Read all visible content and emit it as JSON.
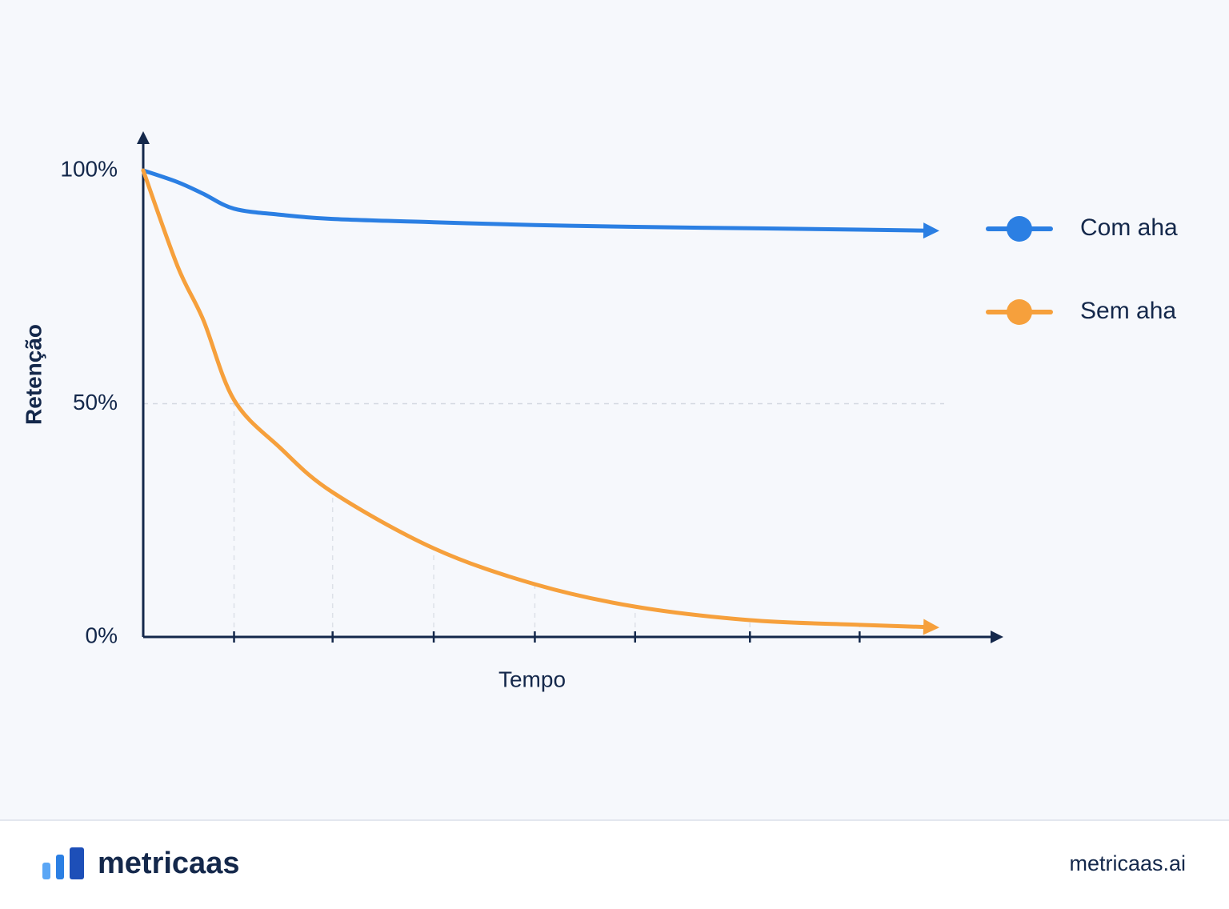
{
  "chart_data": {
    "type": "line",
    "x_label": "Tempo",
    "y_label": "Retenção",
    "x": [
      0,
      0.4,
      0.7,
      1.06,
      1.6,
      2.21,
      3.39,
      4.57,
      5.74,
      7.08,
      8.36,
      9.16
    ],
    "series": [
      {
        "name": "Com aha",
        "color": "#2b7fe3",
        "values": [
          100,
          97.5,
          95,
          91.8,
          90.5,
          89.6,
          88.9,
          88.3,
          87.9,
          87.6,
          87.3,
          87.1
        ]
      },
      {
        "name": "Sem aha",
        "color": "#f6a03c",
        "values": [
          100,
          79.5,
          68,
          50.8,
          40.5,
          31,
          19,
          11.3,
          6.5,
          3.6,
          2.6,
          2.1
        ]
      }
    ],
    "xlim": [
      0,
      10
    ],
    "xticks": [
      1.06,
      2.21,
      3.39,
      4.57,
      5.74,
      7.08,
      8.36
    ],
    "ylim": [
      0,
      100
    ],
    "yticks": [
      {
        "value": 0,
        "label": "0%"
      },
      {
        "value": 50,
        "label": "50%"
      },
      {
        "value": 100,
        "label": "100%"
      }
    ],
    "grid": true,
    "legend": "right"
  },
  "footer": {
    "brand": "metricaas",
    "url": "metricaas.ai"
  }
}
